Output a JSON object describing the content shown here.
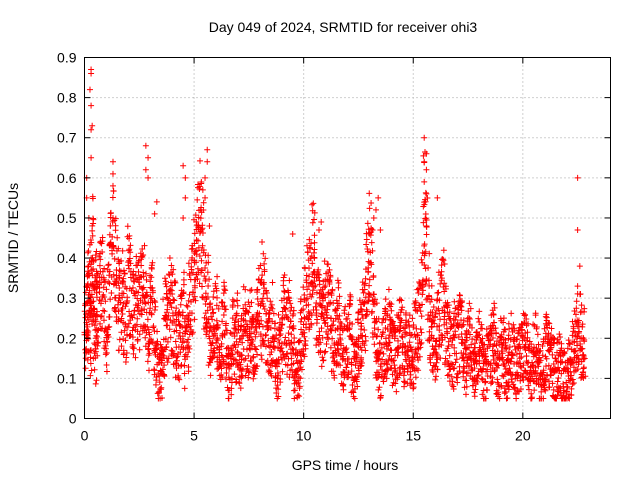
{
  "chart_data": {
    "type": "scatter",
    "title": "Day 049 of 2024, SRMTID for receiver ohi3",
    "xlabel": "GPS time / hours",
    "ylabel": "SRMTID / TECUs",
    "xlim": [
      0,
      24
    ],
    "ylim": [
      0,
      0.9
    ],
    "xticks": [
      0,
      5,
      10,
      15,
      20
    ],
    "xtick_labels": [
      "0",
      "5",
      "10",
      "15",
      "20"
    ],
    "yticks": [
      0,
      0.1,
      0.2,
      0.3,
      0.4,
      0.5,
      0.6,
      0.7,
      0.8,
      0.9
    ],
    "ytick_labels": [
      "0",
      "0.1",
      "0.2",
      "0.3",
      "0.4",
      "0.5",
      "0.6",
      "0.7",
      "0.8",
      "0.9"
    ],
    "grid": true,
    "marker": "+",
    "marker_color": "#ff0000",
    "series": [
      {
        "name": "SRMTID",
        "x": [
          0.05,
          0.1,
          0.15,
          0.2,
          0.25,
          0.3,
          0.35,
          0.4,
          0.45,
          0.5,
          0.55,
          0.6,
          0.7,
          0.8,
          0.9,
          1.0,
          1.1,
          1.2,
          1.3,
          1.4,
          1.5,
          1.6,
          1.7,
          1.8,
          1.9,
          2.0,
          2.1,
          2.2,
          2.3,
          2.4,
          2.5,
          2.6,
          2.7,
          2.8,
          2.9,
          3.0,
          3.1,
          3.2,
          3.3,
          3.4,
          3.5,
          3.6,
          3.7,
          3.8,
          3.9,
          4.0,
          4.1,
          4.2,
          4.3,
          4.4,
          4.5,
          4.6,
          4.7,
          4.8,
          4.9,
          5.0,
          5.1,
          5.2,
          5.3,
          5.4,
          5.5,
          5.6,
          5.7,
          5.8,
          5.9,
          6.0,
          6.1,
          6.2,
          6.3,
          6.4,
          6.5,
          6.6,
          6.7,
          6.8,
          6.9,
          7.0,
          7.1,
          7.2,
          7.3,
          7.4,
          7.5,
          7.6,
          7.7,
          7.8,
          7.9,
          8.0,
          8.1,
          8.2,
          8.3,
          8.4,
          8.5,
          8.6,
          8.7,
          8.8,
          8.9,
          9.0,
          9.1,
          9.2,
          9.3,
          9.4,
          9.5,
          9.6,
          9.7,
          9.8,
          9.9,
          10.0,
          10.1,
          10.2,
          10.3,
          10.4,
          10.5,
          10.6,
          10.7,
          10.8,
          10.9,
          11.0,
          11.1,
          11.2,
          11.3,
          11.4,
          11.5,
          11.6,
          11.7,
          11.8,
          11.9,
          12.0,
          12.1,
          12.2,
          12.3,
          12.4,
          12.5,
          12.6,
          12.7,
          12.8,
          12.9,
          13.0,
          13.1,
          13.2,
          13.3,
          13.4,
          13.5,
          13.6,
          13.7,
          13.8,
          13.9,
          14.0,
          14.1,
          14.2,
          14.3,
          14.4,
          14.5,
          14.6,
          14.7,
          14.8,
          14.9,
          15.0,
          15.1,
          15.2,
          15.3,
          15.4,
          15.5,
          15.6,
          15.7,
          15.8,
          15.9,
          16.0,
          16.1,
          16.2,
          16.3,
          16.4,
          16.5,
          16.6,
          16.7,
          16.8,
          16.9,
          17.0,
          17.1,
          17.2,
          17.3,
          17.4,
          17.5,
          17.6,
          17.7,
          17.8,
          17.9,
          18.0,
          18.1,
          18.2,
          18.3,
          18.4,
          18.5,
          18.6,
          18.7,
          18.8,
          18.9,
          19.0,
          19.1,
          19.2,
          19.3,
          19.4,
          19.5,
          19.6,
          19.7,
          19.8,
          19.9,
          20.0,
          20.1,
          20.2,
          20.3,
          20.4,
          20.5,
          20.6,
          20.7,
          20.8,
          20.9,
          21.0,
          21.1,
          21.2,
          21.3,
          21.4,
          21.5,
          21.6,
          21.7,
          21.8,
          21.9,
          22.0,
          22.1,
          22.2,
          22.3,
          22.4,
          22.5,
          22.6,
          22.7,
          22.8,
          0.22,
          0.24,
          0.3,
          0.28,
          0.32,
          0.2,
          0.36,
          0.42,
          0.25,
          0.18,
          0.3,
          0.27,
          0.35,
          0.33,
          0.29,
          0.22,
          0.31,
          0.38,
          0.45,
          0.4,
          0.33,
          0.28,
          0.3,
          0.26,
          0.24,
          0.36,
          0.31,
          0.27,
          0.25,
          0.3,
          0.29,
          0.35,
          0.32,
          0.26,
          0.22,
          0.25,
          0.28,
          0.2,
          0.14,
          0.1,
          0.12,
          0.2,
          0.25,
          0.22,
          0.3,
          0.27,
          0.24,
          0.2,
          0.18,
          0.22,
          0.26,
          0.16,
          0.2,
          0.28,
          0.32,
          0.38,
          0.42,
          0.46,
          0.5,
          0.4,
          0.35,
          0.3,
          0.24,
          0.2,
          0.22,
          0.26,
          0.18,
          0.16,
          0.2,
          0.24,
          0.15,
          0.12,
          0.14,
          0.2,
          0.18,
          0.22,
          0.16,
          0.2,
          0.24,
          0.18,
          0.2,
          0.22,
          0.17,
          0.19,
          0.23,
          0.28,
          0.25,
          0.3,
          0.22,
          0.18,
          0.2,
          0.24,
          0.15,
          0.12,
          0.18,
          0.22,
          0.26,
          0.2,
          0.24,
          0.2,
          0.18,
          0.12,
          0.1,
          0.14,
          0.2,
          0.24,
          0.28,
          0.32,
          0.36,
          0.4,
          0.38,
          0.3,
          0.26,
          0.22,
          0.24,
          0.28,
          0.3,
          0.26,
          0.22,
          0.18,
          0.2,
          0.24,
          0.16,
          0.14,
          0.2,
          0.18,
          0.22,
          0.15,
          0.12,
          0.14,
          0.18,
          0.2,
          0.24,
          0.28,
          0.36,
          0.44,
          0.4,
          0.3,
          0.2,
          0.16,
          0.12,
          0.16,
          0.2,
          0.18,
          0.22,
          0.2,
          0.16,
          0.14,
          0.18,
          0.2,
          0.22,
          0.16,
          0.18,
          0.2,
          0.14,
          0.16,
          0.2,
          0.22,
          0.24,
          0.3,
          0.5,
          0.45,
          0.3,
          0.24,
          0.2,
          0.18,
          0.22,
          0.26,
          0.3,
          0.32,
          0.24,
          0.2,
          0.18,
          0.16,
          0.2,
          0.18,
          0.22,
          0.2,
          0.16,
          0.14,
          0.18,
          0.2,
          0.16,
          0.12,
          0.14,
          0.18,
          0.16,
          0.12,
          0.1,
          0.14,
          0.16,
          0.18,
          0.2,
          0.14,
          0.12,
          0.16,
          0.18,
          0.14,
          0.12,
          0.15,
          0.18,
          0.16,
          0.12,
          0.14,
          0.16,
          0.18,
          0.2,
          0.16,
          0.14,
          0.12,
          0.16,
          0.18,
          0.14,
          0.1,
          0.12,
          0.15,
          0.18,
          0.16,
          0.14,
          0.12,
          0.1,
          0.12,
          0.14,
          0.12,
          0.1,
          0.08,
          0.12,
          0.14,
          0.16,
          0.2,
          0.22,
          0.24,
          0.2,
          0.18
        ],
        "peaks": [
          {
            "x": 0.3,
            "y": 0.87
          },
          {
            "x": 0.3,
            "y": 0.86
          },
          {
            "x": 0.25,
            "y": 0.82
          },
          {
            "x": 0.3,
            "y": 0.78
          },
          {
            "x": 0.35,
            "y": 0.73
          },
          {
            "x": 0.3,
            "y": 0.72
          },
          {
            "x": 0.3,
            "y": 0.65
          },
          {
            "x": 0.1,
            "y": 0.6
          },
          {
            "x": 0.1,
            "y": 0.55
          },
          {
            "x": 0.2,
            "y": 0.5
          },
          {
            "x": 1.3,
            "y": 0.64
          },
          {
            "x": 1.3,
            "y": 0.61
          },
          {
            "x": 1.3,
            "y": 0.58
          },
          {
            "x": 1.3,
            "y": 0.5
          },
          {
            "x": 2.8,
            "y": 0.68
          },
          {
            "x": 2.9,
            "y": 0.65
          },
          {
            "x": 2.8,
            "y": 0.62
          },
          {
            "x": 2.9,
            "y": 0.6
          },
          {
            "x": 3.3,
            "y": 0.54
          },
          {
            "x": 3.2,
            "y": 0.51
          },
          {
            "x": 4.5,
            "y": 0.63
          },
          {
            "x": 4.6,
            "y": 0.6
          },
          {
            "x": 4.6,
            "y": 0.55
          },
          {
            "x": 4.5,
            "y": 0.5
          },
          {
            "x": 5.6,
            "y": 0.67
          },
          {
            "x": 5.6,
            "y": 0.64
          },
          {
            "x": 5.5,
            "y": 0.6
          },
          {
            "x": 5.4,
            "y": 0.57
          },
          {
            "x": 5.5,
            "y": 0.55
          },
          {
            "x": 5.3,
            "y": 0.52
          },
          {
            "x": 5.7,
            "y": 0.48
          },
          {
            "x": 8.1,
            "y": 0.44
          },
          {
            "x": 9.5,
            "y": 0.46
          },
          {
            "x": 10.8,
            "y": 0.49
          },
          {
            "x": 10.7,
            "y": 0.47
          },
          {
            "x": 13.4,
            "y": 0.55
          },
          {
            "x": 13.3,
            "y": 0.52
          },
          {
            "x": 13.2,
            "y": 0.5
          },
          {
            "x": 13.5,
            "y": 0.47
          },
          {
            "x": 15.5,
            "y": 0.7
          },
          {
            "x": 15.6,
            "y": 0.66
          },
          {
            "x": 15.5,
            "y": 0.64
          },
          {
            "x": 15.6,
            "y": 0.62
          },
          {
            "x": 15.5,
            "y": 0.59
          },
          {
            "x": 15.6,
            "y": 0.56
          },
          {
            "x": 16.1,
            "y": 0.55
          },
          {
            "x": 15.6,
            "y": 0.48
          },
          {
            "x": 22.5,
            "y": 0.6
          },
          {
            "x": 22.5,
            "y": 0.47
          },
          {
            "x": 22.6,
            "y": 0.38
          },
          {
            "x": 22.5,
            "y": 0.33
          }
        ]
      }
    ]
  }
}
